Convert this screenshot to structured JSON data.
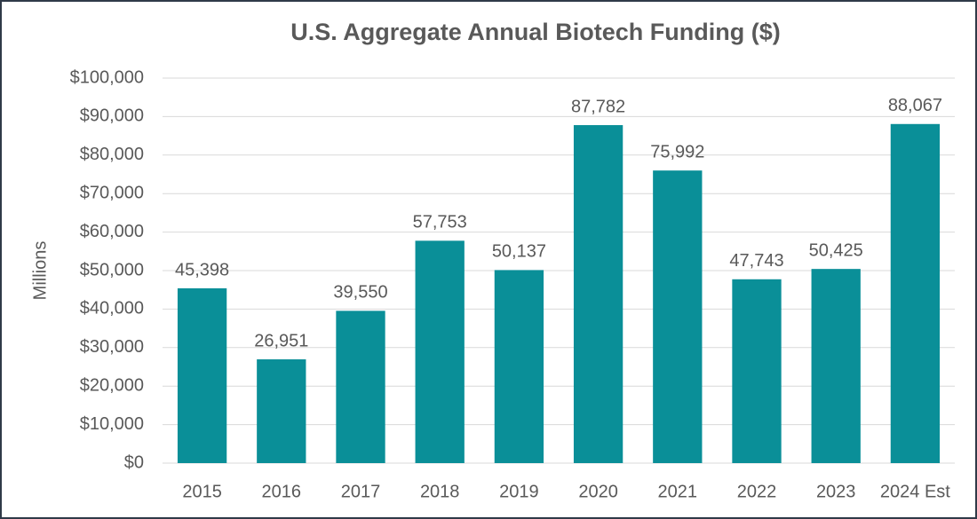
{
  "chart_data": {
    "type": "bar",
    "title": "U.S. Aggregate Annual Biotech Funding ($)",
    "ylabel": "Millions",
    "categories": [
      "2015",
      "2016",
      "2017",
      "2018",
      "2019",
      "2020",
      "2021",
      "2022",
      "2023",
      "2024 Est"
    ],
    "values": [
      45398,
      26951,
      39550,
      57753,
      50137,
      87782,
      75992,
      47743,
      50425,
      88067
    ],
    "value_labels": [
      "45,398",
      "26,951",
      "39,550",
      "57,753",
      "50,137",
      "87,782",
      "75,992",
      "47,743",
      "50,425",
      "88,067"
    ],
    "color": "#0a8f98",
    "ylim": [
      0,
      100000
    ],
    "yticks": [
      {
        "value": 0,
        "label": "$0"
      },
      {
        "value": 10000,
        "label": "$10,000"
      },
      {
        "value": 20000,
        "label": "$20,000"
      },
      {
        "value": 30000,
        "label": "$30,000"
      },
      {
        "value": 40000,
        "label": "$40,000"
      },
      {
        "value": 50000,
        "label": "$50,000"
      },
      {
        "value": 60000,
        "label": "$60,000"
      },
      {
        "value": 70000,
        "label": "$70,000"
      },
      {
        "value": 80000,
        "label": "$80,000"
      },
      {
        "value": 90000,
        "label": "$90,000"
      },
      {
        "value": 100000,
        "label": "$100,000"
      }
    ],
    "grid": true
  }
}
